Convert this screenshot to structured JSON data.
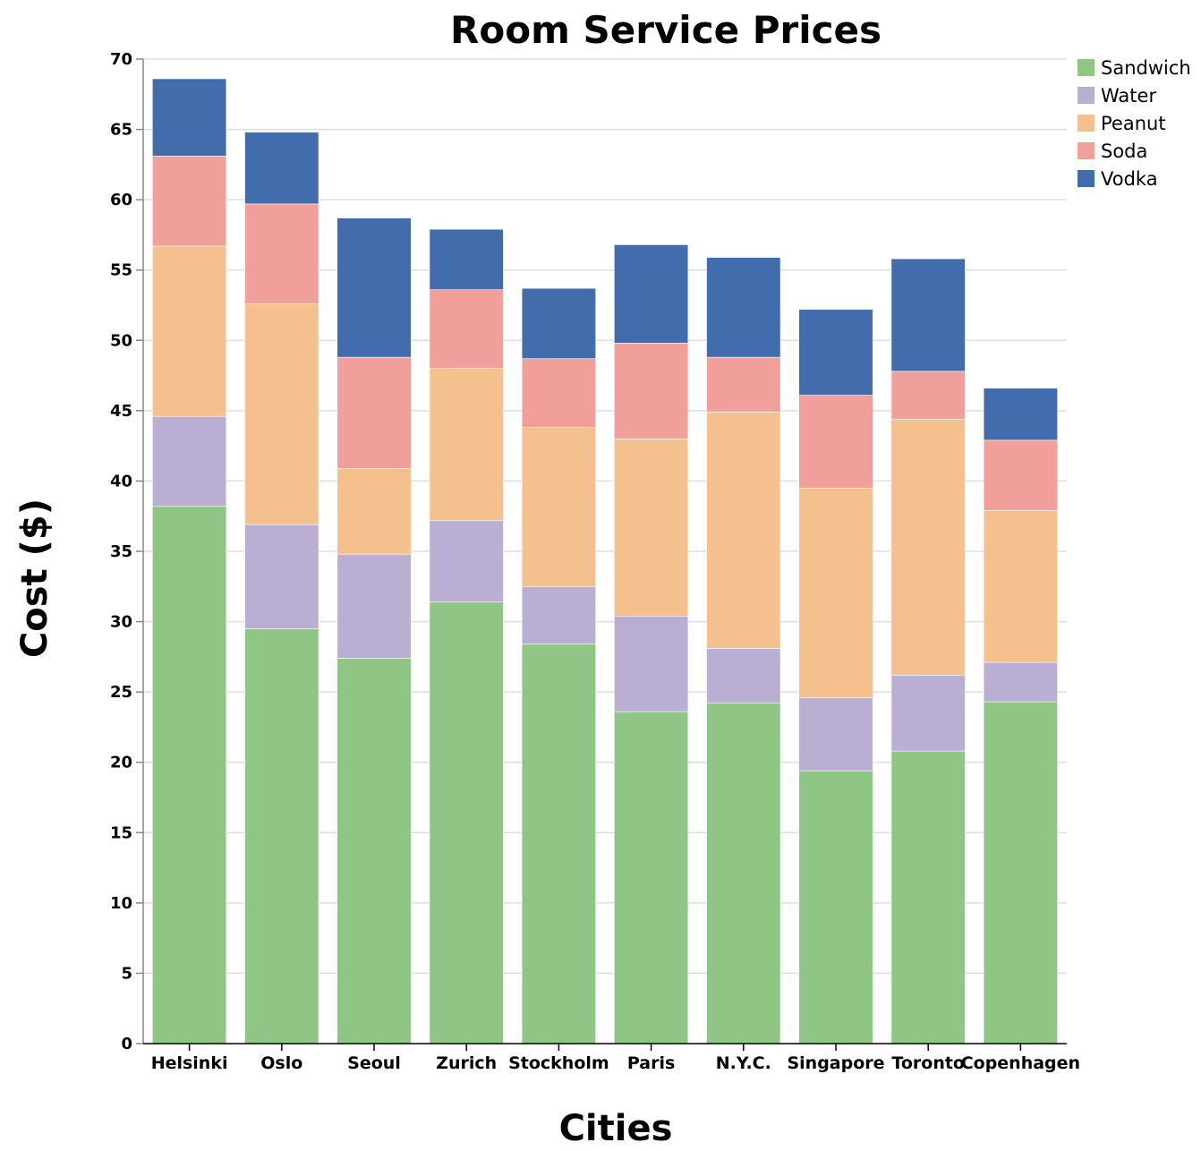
{
  "chart_data": {
    "type": "bar",
    "stacked": true,
    "title": "Room Service Prices",
    "xlabel": "Cities",
    "ylabel": "Cost ($)",
    "ylim": [
      0,
      70
    ],
    "yticks": [
      0,
      5,
      10,
      15,
      20,
      25,
      30,
      35,
      40,
      45,
      50,
      55,
      60,
      65,
      70
    ],
    "grid": true,
    "legend_position": "top-right",
    "categories": [
      "Helsinki",
      "Oslo",
      "Seoul",
      "Zurich",
      "Stockholm",
      "Paris",
      "N.Y.C.",
      "Singapore",
      "Toronto",
      "Copenhagen"
    ],
    "series": [
      {
        "name": "Sandwich",
        "color": "#90c685",
        "values": [
          38.2,
          29.5,
          27.4,
          31.4,
          28.4,
          23.6,
          24.2,
          19.4,
          20.8,
          24.3
        ]
      },
      {
        "name": "Water",
        "color": "#bbaed3",
        "values": [
          6.4,
          7.4,
          7.4,
          5.8,
          4.1,
          6.8,
          3.9,
          5.2,
          5.4,
          2.8
        ]
      },
      {
        "name": "Peanut",
        "color": "#f4c08d",
        "values": [
          12.1,
          15.7,
          6.1,
          10.8,
          11.3,
          12.6,
          16.8,
          14.9,
          18.2,
          10.8
        ]
      },
      {
        "name": "Soda",
        "color": "#f09f9a",
        "values": [
          6.4,
          7.1,
          7.9,
          5.6,
          4.9,
          6.8,
          3.9,
          6.6,
          3.4,
          5.0
        ]
      },
      {
        "name": "Vodka",
        "color": "#436cac",
        "values": [
          5.5,
          5.1,
          9.9,
          4.3,
          5.0,
          7.0,
          7.1,
          6.1,
          8.0,
          3.7
        ]
      }
    ]
  }
}
